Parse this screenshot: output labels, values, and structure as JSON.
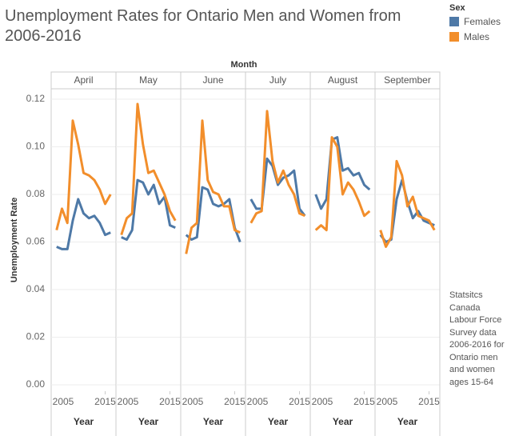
{
  "title": "Unemployment Rates for Ontario Men and Women from 2006-2016",
  "legend_title": "Sex",
  "facet_label": "Month",
  "y_label": "Unemployment Rate",
  "annotation": "Statsitcs Canada Labour Force Survey data 2006-2016 for Ontario men and women ages 15-64",
  "chart_data": [
    {
      "type": "line",
      "title": "April",
      "x_label": "Year",
      "x": [
        2006,
        2007,
        2008,
        2009,
        2010,
        2011,
        2012,
        2013,
        2014,
        2015,
        2016
      ],
      "xlim": [
        2005,
        2017
      ],
      "xticks": [
        2005,
        2015
      ],
      "ylim": [
        0,
        0.12
      ],
      "yticks": [
        {
          "value": 0,
          "label": "0.00"
        },
        0.02,
        0.04,
        0.06,
        0.08,
        {
          "value": 0.1,
          "label": "0.10"
        },
        0.12
      ],
      "grid": true,
      "series": [
        {
          "name": "Females",
          "color": "#4e79a7",
          "values": [
            0.058,
            0.057,
            0.057,
            0.069,
            0.078,
            0.072,
            0.07,
            0.071,
            0.068,
            0.063,
            0.064
          ]
        },
        {
          "name": "Males",
          "color": "#f28e2b",
          "values": [
            0.065,
            0.074,
            0.068,
            0.111,
            0.101,
            0.089,
            0.088,
            0.086,
            0.082,
            0.076,
            0.08
          ]
        }
      ]
    },
    {
      "type": "line",
      "title": "May",
      "x_label": "Year",
      "x": [
        2006,
        2007,
        2008,
        2009,
        2010,
        2011,
        2012,
        2013,
        2014,
        2015,
        2016
      ],
      "xlim": [
        2005,
        2017
      ],
      "xticks": [
        2005,
        2015
      ],
      "ylim": [
        0,
        0.12
      ],
      "yticks": [
        {
          "value": 0,
          "label": "0.00"
        },
        0.02,
        0.04,
        0.06,
        0.08,
        {
          "value": 0.1,
          "label": "0.10"
        },
        0.12
      ],
      "grid": true,
      "series": [
        {
          "name": "Females",
          "color": "#4e79a7",
          "values": [
            0.062,
            0.061,
            0.065,
            0.086,
            0.085,
            0.08,
            0.084,
            0.076,
            0.079,
            0.067,
            0.066
          ]
        },
        {
          "name": "Males",
          "color": "#f28e2b",
          "values": [
            0.063,
            0.07,
            0.072,
            0.118,
            0.101,
            0.089,
            0.09,
            0.085,
            0.08,
            0.073,
            0.069
          ]
        }
      ]
    },
    {
      "type": "line",
      "title": "June",
      "x_label": "Year",
      "x": [
        2006,
        2007,
        2008,
        2009,
        2010,
        2011,
        2012,
        2013,
        2014,
        2015,
        2016
      ],
      "xlim": [
        2005,
        2017
      ],
      "xticks": [
        2005,
        2015
      ],
      "ylim": [
        0,
        0.12
      ],
      "yticks": [
        {
          "value": 0,
          "label": "0.00"
        },
        0.02,
        0.04,
        0.06,
        0.08,
        {
          "value": 0.1,
          "label": "0.10"
        },
        0.12
      ],
      "grid": true,
      "series": [
        {
          "name": "Females",
          "color": "#4e79a7",
          "values": [
            0.063,
            0.061,
            0.062,
            0.083,
            0.082,
            0.076,
            0.075,
            0.076,
            0.078,
            0.066,
            0.06
          ]
        },
        {
          "name": "Males",
          "color": "#f28e2b",
          "values": [
            0.055,
            0.066,
            0.068,
            0.111,
            0.086,
            0.081,
            0.08,
            0.075,
            0.075,
            0.065,
            0.064
          ]
        }
      ]
    },
    {
      "type": "line",
      "title": "July",
      "x_label": "Year",
      "x": [
        2006,
        2007,
        2008,
        2009,
        2010,
        2011,
        2012,
        2013,
        2014,
        2015,
        2016
      ],
      "xlim": [
        2005,
        2017
      ],
      "xticks": [
        2005,
        2015
      ],
      "ylim": [
        0,
        0.12
      ],
      "yticks": [
        {
          "value": 0,
          "label": "0.00"
        },
        0.02,
        0.04,
        0.06,
        0.08,
        {
          "value": 0.1,
          "label": "0.10"
        },
        0.12
      ],
      "grid": true,
      "series": [
        {
          "name": "Females",
          "color": "#4e79a7",
          "values": [
            0.078,
            0.074,
            0.074,
            0.095,
            0.092,
            0.084,
            0.087,
            0.088,
            0.09,
            0.074,
            0.071
          ]
        },
        {
          "name": "Males",
          "color": "#f28e2b",
          "values": [
            0.068,
            0.072,
            0.073,
            0.115,
            0.094,
            0.085,
            0.09,
            0.084,
            0.08,
            0.072,
            0.071
          ]
        }
      ]
    },
    {
      "type": "line",
      "title": "August",
      "x_label": "Year",
      "x": [
        2006,
        2007,
        2008,
        2009,
        2010,
        2011,
        2012,
        2013,
        2014,
        2015,
        2016
      ],
      "xlim": [
        2005,
        2017
      ],
      "xticks": [
        2005,
        2015
      ],
      "ylim": [
        0,
        0.12
      ],
      "yticks": [
        {
          "value": 0,
          "label": "0.00"
        },
        0.02,
        0.04,
        0.06,
        0.08,
        {
          "value": 0.1,
          "label": "0.10"
        },
        0.12
      ],
      "grid": true,
      "series": [
        {
          "name": "Females",
          "color": "#4e79a7",
          "values": [
            0.08,
            0.074,
            0.078,
            0.103,
            0.104,
            0.09,
            0.091,
            0.088,
            0.089,
            0.084,
            0.082
          ]
        },
        {
          "name": "Males",
          "color": "#f28e2b",
          "values": [
            0.065,
            0.067,
            0.065,
            0.104,
            0.1,
            0.08,
            0.085,
            0.082,
            0.077,
            0.071,
            0.073
          ]
        }
      ]
    },
    {
      "type": "line",
      "title": "September",
      "x_label": "Year",
      "x": [
        2006,
        2007,
        2008,
        2009,
        2010,
        2011,
        2012,
        2013,
        2014,
        2015,
        2016
      ],
      "xlim": [
        2005,
        2017
      ],
      "xticks": [
        2005,
        2015
      ],
      "ylim": [
        0,
        0.12
      ],
      "yticks": [
        {
          "value": 0,
          "label": "0.00"
        },
        0.02,
        0.04,
        0.06,
        0.08,
        {
          "value": 0.1,
          "label": "0.10"
        },
        0.12
      ],
      "grid": true,
      "series": [
        {
          "name": "Females",
          "color": "#4e79a7",
          "values": [
            0.063,
            0.06,
            0.061,
            0.078,
            0.086,
            0.077,
            0.07,
            0.073,
            0.069,
            0.068,
            0.067
          ]
        },
        {
          "name": "Males",
          "color": "#f28e2b",
          "values": [
            0.065,
            0.058,
            0.062,
            0.094,
            0.088,
            0.075,
            0.079,
            0.071,
            0.07,
            0.069,
            0.065
          ]
        }
      ]
    }
  ]
}
